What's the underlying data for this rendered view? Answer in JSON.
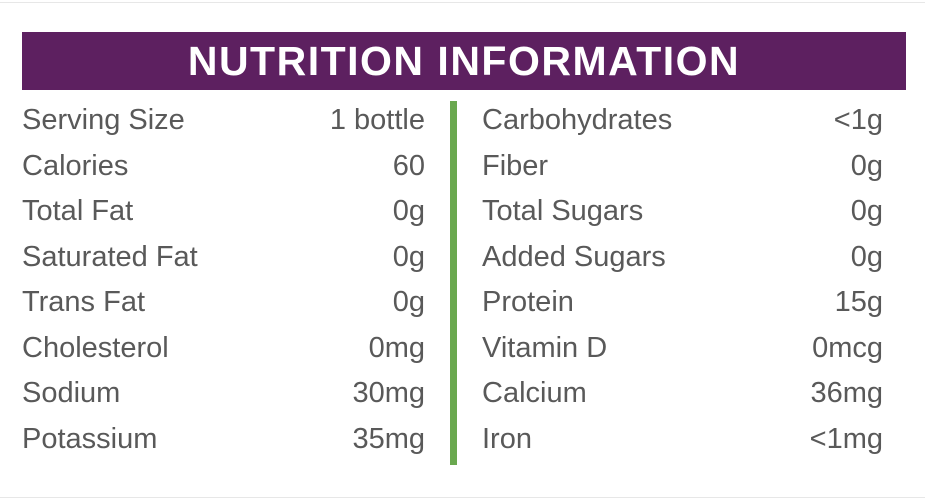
{
  "header": {
    "title": "NUTRITION INFORMATION"
  },
  "colors": {
    "header_background": "#5d2060",
    "header_text": "#ffffff",
    "body_text": "#595959",
    "divider_green": "#6aa84f",
    "background": "#ffffff"
  },
  "columns": {
    "left": {
      "rows": [
        {
          "label": "Serving Size",
          "value": "1 bottle"
        },
        {
          "label": "Calories",
          "value": "60"
        },
        {
          "label": "Total Fat",
          "value": "0g"
        },
        {
          "label": "Saturated Fat",
          "value": "0g"
        },
        {
          "label": "Trans Fat",
          "value": "0g"
        },
        {
          "label": "Cholesterol",
          "value": "0mg"
        },
        {
          "label": "Sodium",
          "value": "30mg"
        },
        {
          "label": "Potassium",
          "value": "35mg"
        }
      ]
    },
    "right": {
      "rows": [
        {
          "label": "Carbohydrates",
          "value": "<1g"
        },
        {
          "label": "Fiber",
          "value": "0g"
        },
        {
          "label": "Total Sugars",
          "value": "0g"
        },
        {
          "label": "Added Sugars",
          "value": "0g"
        },
        {
          "label": "Protein",
          "value": "15g"
        },
        {
          "label": "Vitamin D",
          "value": "0mcg"
        },
        {
          "label": "Calcium",
          "value": "36mg"
        },
        {
          "label": "Iron",
          "value": "<1mg"
        }
      ]
    }
  }
}
